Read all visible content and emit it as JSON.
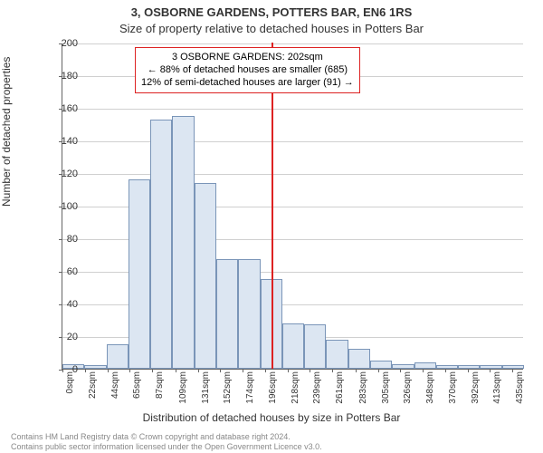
{
  "chart": {
    "type": "histogram",
    "title_main": "3, OSBORNE GARDENS, POTTERS BAR, EN6 1RS",
    "title_sub": "Size of property relative to detached houses in Potters Bar",
    "ylabel": "Number of detached properties",
    "xlabel": "Distribution of detached houses by size in Potters Bar",
    "background_color": "#ffffff",
    "bar_fill": "#dce6f2",
    "bar_edge": "#7a95b8",
    "grid_color": "#d0d0d0",
    "refline_color": "#d22",
    "ylim": [
      0,
      200
    ],
    "ytick_step": 20,
    "xticks": [
      "0sqm",
      "22sqm",
      "44sqm",
      "65sqm",
      "87sqm",
      "109sqm",
      "131sqm",
      "152sqm",
      "174sqm",
      "196sqm",
      "218sqm",
      "239sqm",
      "261sqm",
      "283sqm",
      "305sqm",
      "326sqm",
      "348sqm",
      "370sqm",
      "392sqm",
      "413sqm",
      "435sqm"
    ],
    "xtick_positions": [
      0,
      22,
      44,
      65,
      87,
      109,
      131,
      152,
      174,
      196,
      218,
      239,
      261,
      283,
      305,
      326,
      348,
      370,
      392,
      413,
      435
    ],
    "xmax": 446,
    "values": [
      3,
      2,
      15,
      116,
      153,
      155,
      114,
      67,
      67,
      55,
      28,
      27,
      18,
      12,
      5,
      3,
      4,
      2,
      2,
      2,
      2
    ],
    "refline_x": 202,
    "annotation": {
      "line1": "3 OSBORNE GARDENS: 202sqm",
      "line2": "← 88% of detached houses are smaller (685)",
      "line3": "12% of semi-detached houses are larger (91) →"
    },
    "license": {
      "line1": "Contains HM Land Registry data © Crown copyright and database right 2024.",
      "line2": "Contains public sector information licensed under the Open Government Licence v3.0."
    }
  }
}
